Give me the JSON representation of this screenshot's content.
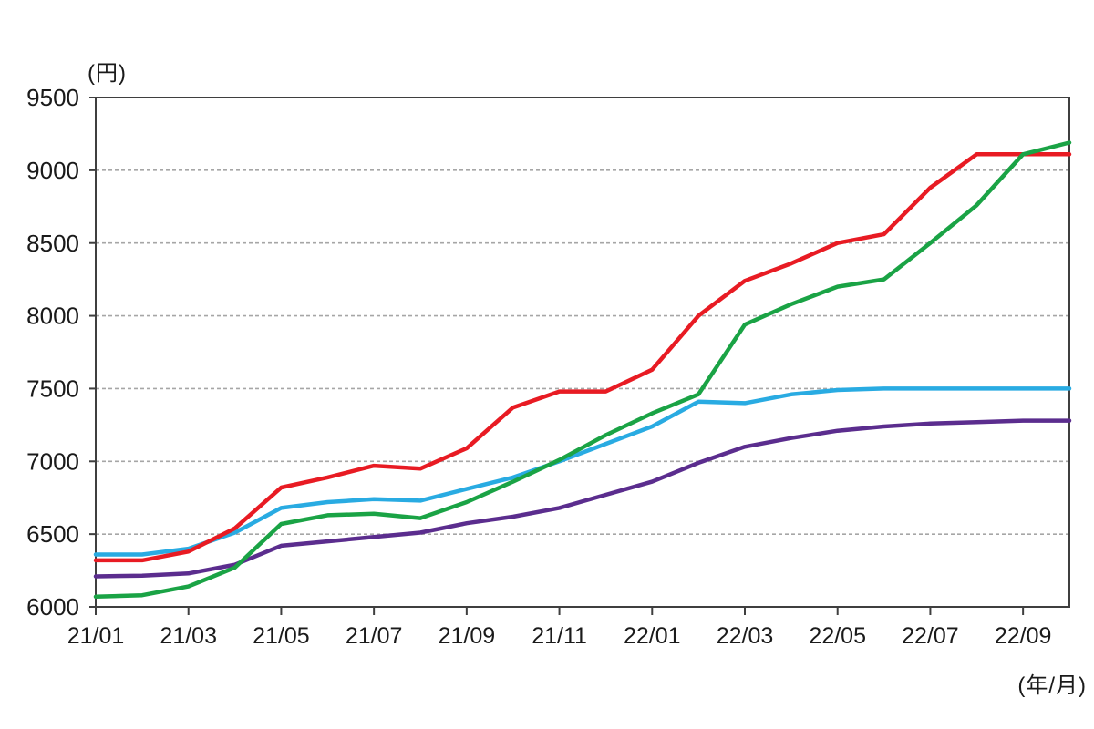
{
  "chart_data": {
    "type": "line",
    "title": "",
    "ylabel": "(円)",
    "xlabel": "(年/月)",
    "ylim": [
      6000,
      9500
    ],
    "yticks": [
      6000,
      6500,
      7000,
      7500,
      8000,
      8500,
      9000,
      9500
    ],
    "grid": "horizontal-dashed",
    "legend_position": "none",
    "x": [
      "21/01",
      "21/02",
      "21/03",
      "21/04",
      "21/05",
      "21/06",
      "21/07",
      "21/08",
      "21/09",
      "21/10",
      "21/11",
      "21/12",
      "22/01",
      "22/02",
      "22/03",
      "22/04",
      "22/05",
      "22/06",
      "22/07",
      "22/08",
      "22/09",
      "22/10"
    ],
    "x_tick_labels": [
      "21/01",
      "21/03",
      "21/05",
      "21/07",
      "21/09",
      "21/11",
      "22/01",
      "22/03",
      "22/05",
      "22/07",
      "22/09"
    ],
    "series": [
      {
        "name": "sky-blue-line",
        "color": "#29abe2",
        "values": [
          6360,
          6360,
          6400,
          6510,
          6680,
          6720,
          6740,
          6730,
          6810,
          6890,
          7000,
          7120,
          7240,
          7410,
          7400,
          7460,
          7490,
          7500,
          7500,
          7500,
          7500,
          7500
        ]
      },
      {
        "name": "purple-line",
        "color": "#5b2d8e",
        "values": [
          6210,
          6215,
          6230,
          6290,
          6420,
          6450,
          6480,
          6510,
          6575,
          6620,
          6680,
          6770,
          6860,
          6990,
          7100,
          7160,
          7210,
          7240,
          7260,
          7270,
          7280,
          7280
        ]
      },
      {
        "name": "red-line",
        "color": "#e81b23",
        "values": [
          6320,
          6320,
          6380,
          6540,
          6820,
          6890,
          6970,
          6950,
          7090,
          7370,
          7480,
          7480,
          7630,
          8000,
          8240,
          8360,
          8500,
          8560,
          8880,
          9110,
          9110,
          9110
        ]
      },
      {
        "name": "green-line",
        "color": "#1aa345",
        "values": [
          6070,
          6080,
          6140,
          6270,
          6570,
          6630,
          6640,
          6610,
          6720,
          6860,
          7010,
          7180,
          7330,
          7460,
          7940,
          8080,
          8200,
          8250,
          8500,
          8760,
          9110,
          9190
        ]
      }
    ],
    "axis_color": "#3f3f3f",
    "gridline_color": "#a6a6a6"
  }
}
